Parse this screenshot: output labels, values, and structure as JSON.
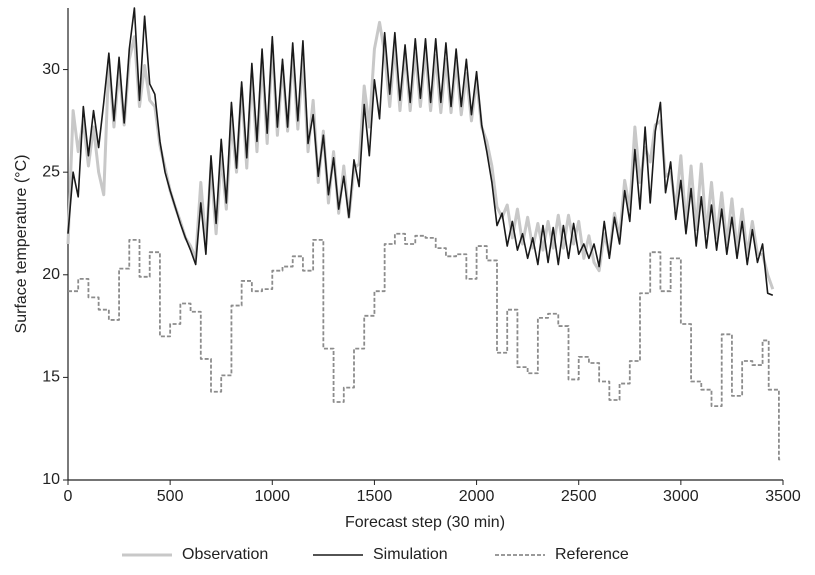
{
  "chart_data": {
    "type": "line",
    "x_label": "Forecast step (30 min)",
    "y_label": "Surface temperature (°C)",
    "xlim": [
      0,
      3500
    ],
    "xticks": [
      0,
      500,
      1000,
      1500,
      2000,
      2500,
      3000,
      3500
    ],
    "ylim": [
      10,
      33
    ],
    "yticks": [
      10,
      15,
      20,
      25,
      30
    ],
    "legend": "bottom",
    "x": [
      0,
      25,
      50,
      75,
      100,
      125,
      150,
      175,
      200,
      225,
      250,
      275,
      300,
      325,
      350,
      375,
      400,
      425,
      450,
      475,
      500,
      525,
      550,
      575,
      600,
      625,
      650,
      675,
      700,
      725,
      750,
      775,
      800,
      825,
      850,
      875,
      900,
      925,
      950,
      975,
      1000,
      1025,
      1050,
      1075,
      1100,
      1125,
      1150,
      1175,
      1200,
      1225,
      1250,
      1275,
      1300,
      1325,
      1350,
      1375,
      1400,
      1425,
      1450,
      1475,
      1500,
      1525,
      1550,
      1575,
      1600,
      1625,
      1650,
      1675,
      1700,
      1725,
      1750,
      1775,
      1800,
      1825,
      1850,
      1875,
      1900,
      1925,
      1950,
      1975,
      2000,
      2025,
      2050,
      2075,
      2100,
      2125,
      2150,
      2175,
      2200,
      2225,
      2250,
      2275,
      2300,
      2325,
      2350,
      2375,
      2400,
      2425,
      2450,
      2475,
      2500,
      2525,
      2550,
      2575,
      2600,
      2625,
      2650,
      2675,
      2700,
      2725,
      2750,
      2775,
      2800,
      2825,
      2850,
      2875,
      2900,
      2925,
      2950,
      2975,
      3000,
      3025,
      3050,
      3075,
      3100,
      3125,
      3150,
      3175,
      3200,
      3225,
      3250,
      3275,
      3300,
      3325,
      3350,
      3375,
      3400,
      3425,
      3450
    ],
    "series": [
      {
        "name": "Observation",
        "color": "#c8c8c8",
        "width": 3,
        "values": [
          21.5,
          28,
          26,
          27.5,
          25.3,
          27.2,
          25,
          23.9,
          30.5,
          27.2,
          30.1,
          27.3,
          30.5,
          31.6,
          28.2,
          30.2,
          28.5,
          28.2,
          26.3,
          25.2,
          24.1,
          23.3,
          22.6,
          21.8,
          21.4,
          20.8,
          24.5,
          21.5,
          25.2,
          22,
          25.8,
          23.2,
          27.5,
          25,
          29.1,
          25.2,
          29.8,
          26,
          30.5,
          26.4,
          31.2,
          26.8,
          30.2,
          27,
          30.8,
          27.1,
          30.5,
          26,
          28.5,
          24.5,
          27,
          23.5,
          26,
          23,
          25.3,
          22.8,
          25.2,
          25.4,
          29.2,
          27.2,
          31,
          32.3,
          30.8,
          28.2,
          31.2,
          28,
          30.8,
          28,
          30.8,
          28.2,
          30.9,
          28,
          30.7,
          27.9,
          30.5,
          27.9,
          30.4,
          27.8,
          29.8,
          27.5,
          29.5,
          27.2,
          26.5,
          25.3,
          23.3,
          22.8,
          23.4,
          21.8,
          23.2,
          21.5,
          22.8,
          21.3,
          22.5,
          21.2,
          22.6,
          21.3,
          22.9,
          21.3,
          22.9,
          21.5,
          22.6,
          20.8,
          21.9,
          20.6,
          20.2,
          22,
          21,
          23,
          21.8,
          24.6,
          23.2,
          27.2,
          24.5,
          26.2,
          25.5,
          27.3,
          27.5,
          24.8,
          25,
          23.2,
          25.8,
          22.4,
          25.3,
          22.2,
          25.4,
          22,
          24.5,
          21.8,
          24,
          21.5,
          23.7,
          21.2,
          23.2,
          21,
          22.6,
          21,
          21,
          20,
          19.3
        ]
      },
      {
        "name": "Simulation",
        "color": "#1a1a1a",
        "width": 1.6,
        "values": [
          22,
          25,
          23.8,
          28.2,
          25.8,
          28,
          26.2,
          28.4,
          30.8,
          27.5,
          30.6,
          27.4,
          31,
          33,
          28.5,
          32.6,
          29.3,
          28.8,
          26.5,
          25,
          24.1,
          23.3,
          22.5,
          21.8,
          21.2,
          20.5,
          23.5,
          21,
          25.8,
          22.5,
          26.6,
          23.5,
          28.4,
          25.2,
          29.4,
          25.7,
          30.3,
          26.5,
          31,
          26.9,
          31.6,
          27.2,
          30.5,
          27.2,
          31.3,
          27.5,
          31.4,
          26.4,
          27.8,
          24.8,
          26.8,
          23.9,
          25.7,
          23.2,
          24.8,
          22.8,
          25.6,
          24.3,
          28.3,
          25.8,
          29.5,
          27.6,
          31.8,
          28.8,
          31.8,
          28.5,
          31.2,
          28.4,
          31.5,
          28.6,
          31.5,
          28.4,
          31.5,
          28.4,
          31.3,
          28.2,
          31,
          28.2,
          30.5,
          27.8,
          29.9,
          27.3,
          26,
          24.5,
          22.4,
          23,
          21.4,
          22.6,
          21.2,
          22,
          20.8,
          21.8,
          20.5,
          22.4,
          20.6,
          22.3,
          20.5,
          22.4,
          20.8,
          22.5,
          21,
          21.5,
          20.8,
          21.5,
          20.4,
          22.6,
          20.8,
          22.8,
          21.5,
          24.1,
          22.6,
          26.1,
          23.2,
          27.2,
          23.5,
          27,
          28.4,
          24,
          25.5,
          22.7,
          24.6,
          22,
          24.2,
          21.4,
          23.8,
          21.3,
          23.4,
          21.2,
          23.2,
          21,
          22.8,
          20.8,
          22.6,
          20.5,
          22.2,
          20.6,
          21.5,
          19.1,
          19
        ]
      },
      {
        "name": "Reference",
        "color": "#8c8c8c",
        "width": 1.8,
        "dash": true,
        "step": true,
        "x": [
          0,
          50,
          100,
          150,
          200,
          250,
          300,
          350,
          400,
          450,
          500,
          550,
          600,
          650,
          700,
          750,
          800,
          850,
          900,
          950,
          1000,
          1050,
          1100,
          1150,
          1200,
          1250,
          1300,
          1350,
          1400,
          1450,
          1500,
          1550,
          1600,
          1650,
          1700,
          1750,
          1800,
          1850,
          1900,
          1950,
          2000,
          2050,
          2100,
          2150,
          2200,
          2250,
          2300,
          2350,
          2400,
          2450,
          2500,
          2550,
          2600,
          2650,
          2700,
          2750,
          2800,
          2850,
          2900,
          2950,
          3000,
          3050,
          3100,
          3150,
          3200,
          3250,
          3300,
          3350,
          3400,
          3430,
          3480,
          3490
        ],
        "values": [
          19.2,
          19.8,
          18.9,
          18.3,
          17.8,
          20.3,
          21.7,
          19.9,
          21.1,
          17,
          17.6,
          18.6,
          18.2,
          15.9,
          14.3,
          15.1,
          18.5,
          19.7,
          19.2,
          19.3,
          20.2,
          20.4,
          20.9,
          20.2,
          21.7,
          16.4,
          13.8,
          14.5,
          16.4,
          18,
          19.2,
          21.5,
          22,
          21.5,
          21.9,
          21.8,
          21.3,
          20.9,
          21,
          19.8,
          21.4,
          20.7,
          16.2,
          18.3,
          15.5,
          15.2,
          17.9,
          18.1,
          17.5,
          14.9,
          16,
          15.7,
          14.8,
          13.9,
          14.7,
          15.8,
          19.1,
          21.1,
          19.2,
          20.8,
          17.6,
          14.8,
          14.4,
          13.6,
          17.1,
          14.1,
          15.8,
          15.6,
          16.8,
          14.4,
          11,
          11
        ]
      }
    ]
  }
}
